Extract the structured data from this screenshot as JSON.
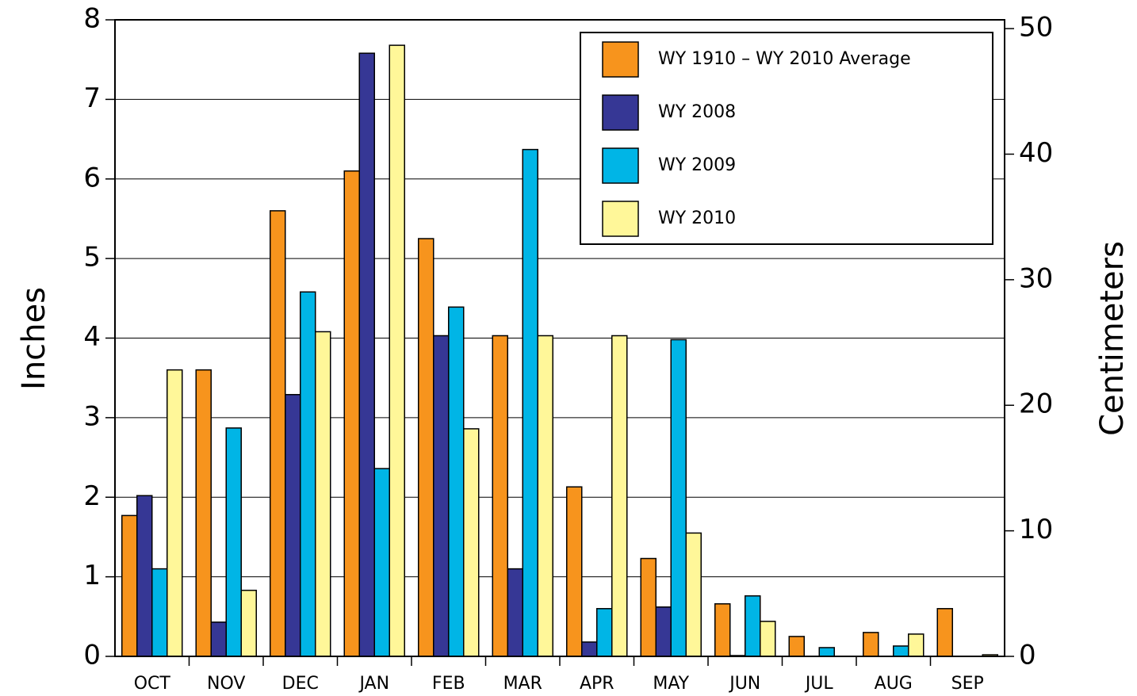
{
  "chart_data": {
    "type": "bar",
    "y_label": "Inches",
    "y2_label": "Centimeters",
    "categories": [
      "OCT",
      "NOV",
      "DEC",
      "JAN",
      "FEB",
      "MAR",
      "APR",
      "MAY",
      "JUN",
      "JUL",
      "AUG",
      "SEP"
    ],
    "series": [
      {
        "name": "WY 1910 – WY 2010 Average",
        "color": "#f7941d",
        "values": [
          1.77,
          3.6,
          5.6,
          6.1,
          5.25,
          4.03,
          2.13,
          1.23,
          0.66,
          0.25,
          0.3,
          0.6
        ]
      },
      {
        "name": "WY 2008",
        "color": "#363795",
        "values": [
          2.02,
          0.43,
          3.29,
          7.58,
          4.03,
          1.1,
          0.18,
          0.62,
          0.01,
          0,
          0,
          0
        ]
      },
      {
        "name": "WY 2009",
        "color": "#00b5e6",
        "values": [
          1.1,
          2.87,
          4.58,
          2.36,
          4.39,
          6.37,
          0.6,
          3.98,
          0.76,
          0.11,
          0.13,
          0
        ]
      },
      {
        "name": "WY 2010",
        "color": "#fff799",
        "values": [
          3.6,
          0.83,
          4.08,
          7.68,
          2.86,
          4.03,
          4.03,
          1.55,
          0.44,
          0,
          0.28,
          0.02
        ]
      }
    ],
    "ylim": [
      0,
      8
    ],
    "yticks": [
      0,
      1,
      2,
      3,
      4,
      5,
      6,
      7,
      8
    ],
    "y2lim": [
      0,
      50.7
    ],
    "y2ticks": [
      0,
      10,
      20,
      30,
      40,
      50
    ],
    "grid": true,
    "legend": "upper right"
  }
}
